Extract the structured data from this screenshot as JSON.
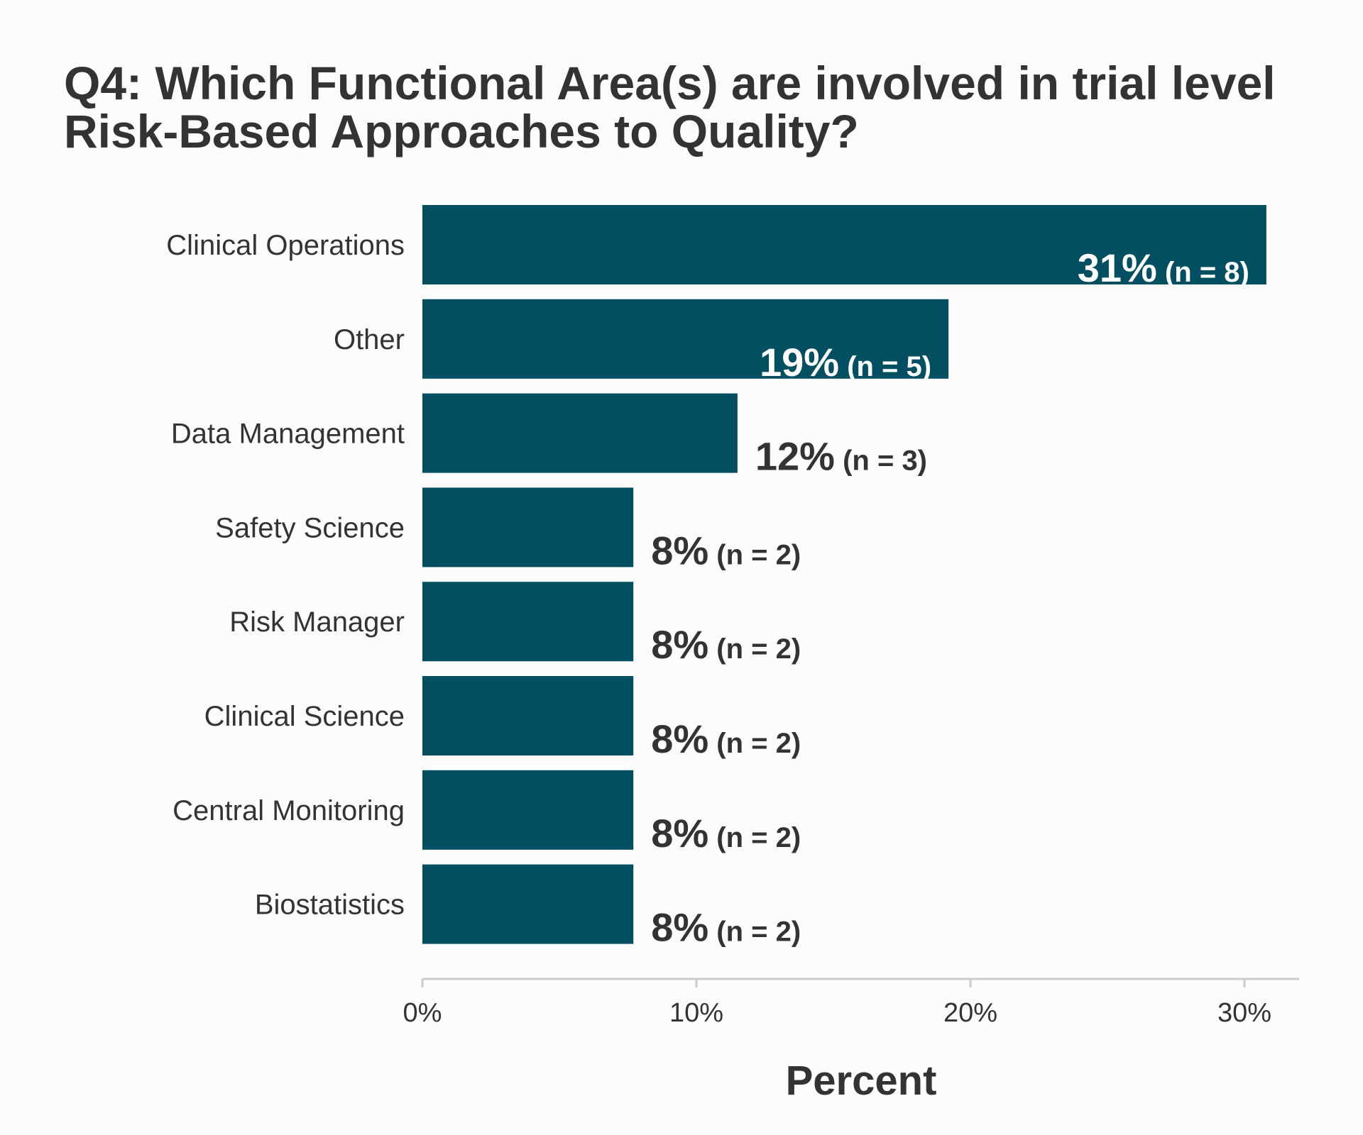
{
  "colors": {
    "bar": "#034f62",
    "text": "#333333",
    "label_inside": "#ffffff",
    "axis": "#cccccc",
    "background": "#fcfcfc"
  },
  "chart_data": {
    "type": "bar",
    "orientation": "horizontal",
    "title_lines": [
      "Q4: Which Functional Area(s) are involved in trial level",
      "Risk-Based Approaches to Quality?"
    ],
    "xlabel": "Percent",
    "ylabel": "",
    "xlim": [
      0,
      32
    ],
    "x_ticks": [
      0,
      10,
      20,
      30
    ],
    "x_tick_labels": [
      "0%",
      "10%",
      "20%",
      "30%"
    ],
    "grid": false,
    "categories": [
      "Clinical Operations",
      "Other",
      "Data Management",
      "Safety Science",
      "Risk Manager",
      "Clinical Science",
      "Central Monitoring",
      "Biostatistics"
    ],
    "values": [
      30.8,
      19.2,
      11.5,
      7.7,
      7.7,
      7.7,
      7.7,
      7.7
    ],
    "value_labels": [
      "31%",
      "19%",
      "12%",
      "8%",
      "8%",
      "8%",
      "8%",
      "8%"
    ],
    "count_labels": [
      "(n = 8)",
      "(n = 5)",
      "(n = 3)",
      "(n = 2)",
      "(n = 2)",
      "(n = 2)",
      "(n = 2)",
      "(n = 2)"
    ],
    "label_inside_bar": [
      true,
      true,
      false,
      false,
      false,
      false,
      false,
      false
    ]
  }
}
